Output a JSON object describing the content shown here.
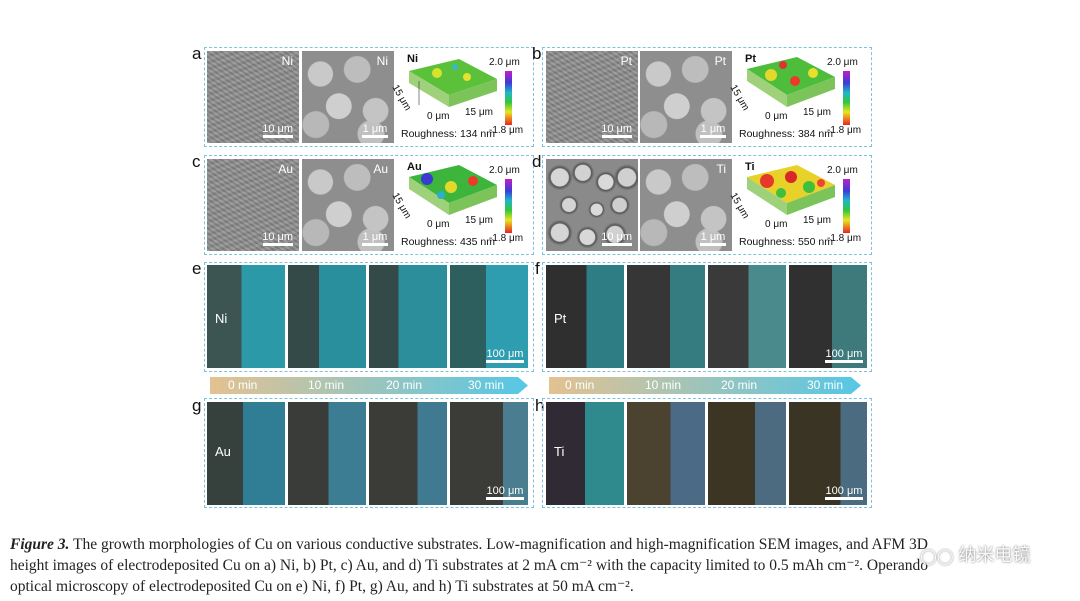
{
  "panels": {
    "a": {
      "letter": "a",
      "material": "Ni",
      "scale_low": "10 μm",
      "scale_high": "1 μm",
      "afm_material": "Ni",
      "roughness": "Roughness: 134 nm"
    },
    "b": {
      "letter": "b",
      "material": "Pt",
      "scale_low": "10 μm",
      "scale_high": "1 μm",
      "afm_material": "Pt",
      "roughness": "Roughness: 384 nm"
    },
    "c": {
      "letter": "c",
      "material": "Au",
      "scale_low": "10 μm",
      "scale_high": "1 μm",
      "afm_material": "Au",
      "roughness": "Roughness: 435 nm"
    },
    "d": {
      "letter": "d",
      "material": "Ti",
      "scale_low": "10 μm",
      "scale_high": "1 μm",
      "afm_material": "Ti",
      "roughness": "Roughness: 550 nm"
    },
    "e": {
      "letter": "e",
      "material": "Ni",
      "scale": "100 μm"
    },
    "f": {
      "letter": "f",
      "material": "Pt",
      "scale": "100 μm"
    },
    "g": {
      "letter": "g",
      "material": "Au",
      "scale": "100 μm"
    },
    "h": {
      "letter": "h",
      "material": "Ti",
      "scale": "100 μm"
    }
  },
  "afm_axes": {
    "max": "2.0 μm",
    "min": "-1.8 μm",
    "x_axis": "0 μm",
    "x_axis_end": "15 μm",
    "y_axis": "15 μm"
  },
  "timeline": [
    "0 min",
    "10 min",
    "20 min",
    "30 min"
  ],
  "colors": {
    "panel_border": "#7cc3df",
    "arrow_start": "#e3c291",
    "arrow_end": "#55c7e6"
  },
  "caption": {
    "figure_label": "Figure 3.",
    "line1": " The growth morphologies of Cu on various conductive substrates. Low-magnification and high-magnification SEM images, and AFM 3D",
    "line2": "height images of electrodeposited Cu on a) Ni, b) Pt, c) Au, and d) Ti substrates at 2 mA cm⁻² with the capacity limited to 0.5 mAh cm⁻². Operando",
    "line3": "optical microscopy of electrodeposited Cu on e) Ni, f) Pt, g) Au, and h) Ti substrates at 50 mA cm⁻²."
  },
  "watermark": "纳米电镜"
}
